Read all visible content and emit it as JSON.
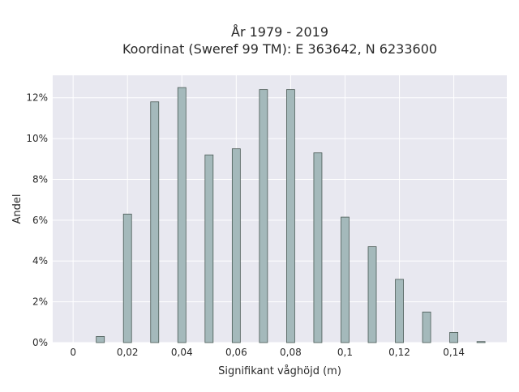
{
  "chart_data": {
    "type": "bar",
    "title_lines": [
      "År 1979 - 2019",
      "Koordinat (Sweref 99 TM): E 363642, N 6233600"
    ],
    "xlabel": "Signifikant våghöjd (m)",
    "ylabel": "Andel",
    "x": [
      0.01,
      0.02,
      0.03,
      0.04,
      0.05,
      0.06,
      0.07,
      0.08,
      0.09,
      0.1,
      0.11,
      0.12,
      0.13,
      0.14,
      0.15
    ],
    "values": [
      0.3,
      6.3,
      11.8,
      12.5,
      9.2,
      9.5,
      12.4,
      12.4,
      9.3,
      6.15,
      4.7,
      3.1,
      1.5,
      0.5,
      0.05
    ],
    "xlim": [
      -0.0075,
      0.1595
    ],
    "ylim": [
      0,
      13.1
    ],
    "x_ticks": [
      {
        "value": 0,
        "label": "0"
      },
      {
        "value": 0.02,
        "label": "0,02"
      },
      {
        "value": 0.04,
        "label": "0,04"
      },
      {
        "value": 0.06,
        "label": "0,06"
      },
      {
        "value": 0.08,
        "label": "0,08"
      },
      {
        "value": 0.1,
        "label": "0,1"
      },
      {
        "value": 0.12,
        "label": "0,12"
      },
      {
        "value": 0.14,
        "label": "0,14"
      }
    ],
    "y_ticks": [
      {
        "value": 0,
        "label": "0%"
      },
      {
        "value": 2,
        "label": "2%"
      },
      {
        "value": 4,
        "label": "4%"
      },
      {
        "value": 6,
        "label": "6%"
      },
      {
        "value": 8,
        "label": "8%"
      },
      {
        "value": 10,
        "label": "10%"
      },
      {
        "value": 12,
        "label": "12%"
      }
    ],
    "grid": true,
    "colors": {
      "bar_fill": "#a4b9bb",
      "bar_stroke": "#4a5a55",
      "plot_bg": "#e8e8f0",
      "grid": "#ffffff"
    }
  }
}
